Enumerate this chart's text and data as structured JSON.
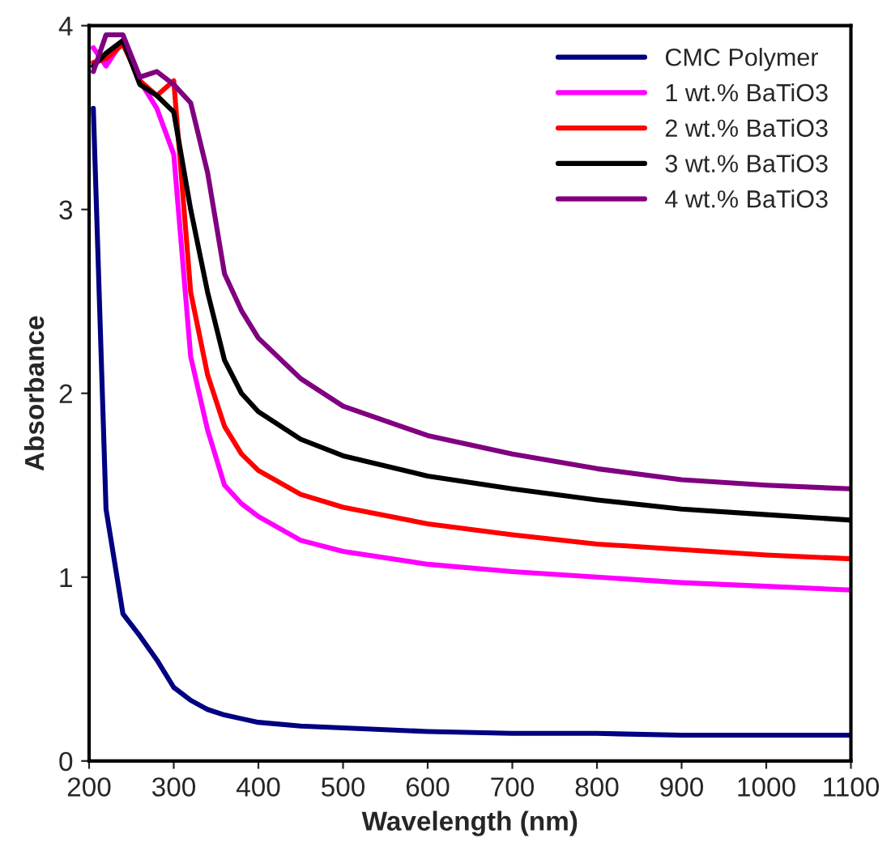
{
  "chart_data": {
    "type": "line",
    "xlabel": "Wavelength (nm)",
    "ylabel": "Absorbance",
    "x": [
      205,
      220,
      240,
      260,
      280,
      300,
      320,
      340,
      360,
      380,
      400,
      450,
      500,
      600,
      700,
      800,
      900,
      1000,
      1100
    ],
    "xlim": [
      200,
      1100
    ],
    "xticks": [
      200,
      300,
      400,
      500,
      600,
      700,
      800,
      900,
      1000,
      1100
    ],
    "ylim": [
      0,
      4
    ],
    "yticks": [
      0,
      1,
      2,
      3,
      4
    ],
    "grid": false,
    "legend": "top right",
    "marker": "none",
    "line_style": "solid",
    "series": [
      {
        "name": "CMC Polymer",
        "color": "#000080",
        "values": [
          3.55,
          1.37,
          0.8,
          0.68,
          0.55,
          0.4,
          0.33,
          0.28,
          0.25,
          0.23,
          0.21,
          0.19,
          0.18,
          0.16,
          0.15,
          0.15,
          0.14,
          0.14,
          0.14
        ]
      },
      {
        "name": "1 wt.% BaTiO3",
        "color": "#ff00ff",
        "values": [
          3.88,
          3.78,
          3.92,
          3.7,
          3.55,
          3.3,
          2.2,
          1.8,
          1.5,
          1.4,
          1.33,
          1.2,
          1.14,
          1.07,
          1.03,
          1.0,
          0.97,
          0.95,
          0.93
        ]
      },
      {
        "name": "2 wt.% BaTiO3",
        "color": "#ff0000",
        "values": [
          3.8,
          3.82,
          3.9,
          3.7,
          3.62,
          3.7,
          2.55,
          2.1,
          1.82,
          1.67,
          1.58,
          1.45,
          1.38,
          1.29,
          1.23,
          1.18,
          1.15,
          1.12,
          1.1
        ]
      },
      {
        "name": "3 wt.% BaTiO3",
        "color": "#000000",
        "values": [
          3.78,
          3.85,
          3.92,
          3.68,
          3.62,
          3.53,
          3.0,
          2.55,
          2.18,
          2.0,
          1.9,
          1.75,
          1.66,
          1.55,
          1.48,
          1.42,
          1.37,
          1.34,
          1.31
        ]
      },
      {
        "name": "4 wt.% BaTiO3",
        "color": "#800080",
        "values": [
          3.75,
          3.95,
          3.95,
          3.72,
          3.75,
          3.68,
          3.58,
          3.2,
          2.65,
          2.45,
          2.3,
          2.08,
          1.93,
          1.77,
          1.67,
          1.59,
          1.53,
          1.5,
          1.48
        ]
      }
    ]
  }
}
